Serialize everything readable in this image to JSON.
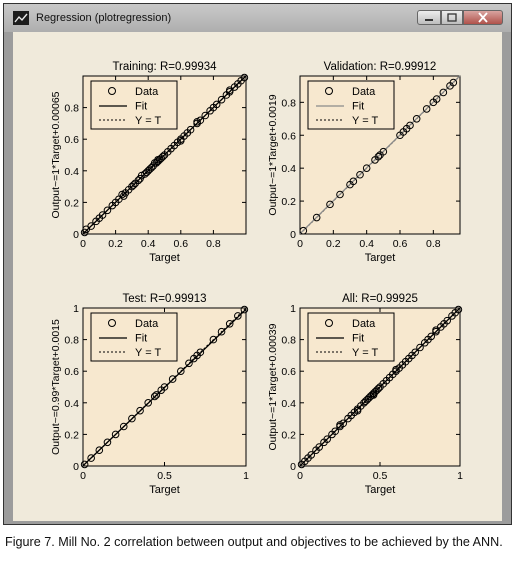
{
  "window": {
    "title": "Regression (plotregression)",
    "icons": {
      "app": "plot-icon",
      "minimize": "minimize-icon",
      "maximize": "maximize-icon",
      "close": "close-icon"
    },
    "colors": {
      "client_bg": "#f0eadb",
      "axes_bg": "#f7e8cf",
      "frame": "#9c9c9c"
    }
  },
  "caption": "Figure 7. Mill No. 2 correlation between output and objectives to be achieved by the ANN.",
  "chart_data": [
    {
      "type": "scatter",
      "title": "Training: R=0.99934",
      "xlabel": "Target",
      "ylabel": "Output~=1*Target+0.00065",
      "xlim": [
        0,
        1
      ],
      "ylim": [
        0,
        1
      ],
      "xticks": [
        "0",
        "0.2",
        "0.4",
        "0.6",
        "0.8"
      ],
      "xtick_values": [
        0,
        0.2,
        0.4,
        0.6,
        0.8
      ],
      "yticks": [
        "0",
        "0.2",
        "0.4",
        "0.6",
        "0.8"
      ],
      "ytick_values": [
        0,
        0.2,
        0.4,
        0.6,
        0.8
      ],
      "legend": [
        "Data",
        "Fit",
        "Y = T"
      ],
      "legend_position": "top-left",
      "fit_color": "#000000",
      "fit": {
        "slope": 1,
        "intercept": 0.00065
      },
      "points": [
        [
          0.01,
          0.01
        ],
        [
          0.02,
          0.03
        ],
        [
          0.05,
          0.05
        ],
        [
          0.08,
          0.08
        ],
        [
          0.1,
          0.1
        ],
        [
          0.12,
          0.12
        ],
        [
          0.15,
          0.15
        ],
        [
          0.18,
          0.18
        ],
        [
          0.2,
          0.2
        ],
        [
          0.22,
          0.22
        ],
        [
          0.24,
          0.25
        ],
        [
          0.26,
          0.26
        ],
        [
          0.28,
          0.28
        ],
        [
          0.3,
          0.3
        ],
        [
          0.31,
          0.31
        ],
        [
          0.32,
          0.32
        ],
        [
          0.34,
          0.34
        ],
        [
          0.35,
          0.35
        ],
        [
          0.36,
          0.37
        ],
        [
          0.38,
          0.38
        ],
        [
          0.39,
          0.39
        ],
        [
          0.4,
          0.4
        ],
        [
          0.41,
          0.41
        ],
        [
          0.42,
          0.42
        ],
        [
          0.43,
          0.43
        ],
        [
          0.44,
          0.45
        ],
        [
          0.45,
          0.45
        ],
        [
          0.46,
          0.46
        ],
        [
          0.47,
          0.47
        ],
        [
          0.48,
          0.48
        ],
        [
          0.49,
          0.49
        ],
        [
          0.5,
          0.5
        ],
        [
          0.52,
          0.52
        ],
        [
          0.54,
          0.54
        ],
        [
          0.56,
          0.56
        ],
        [
          0.58,
          0.58
        ],
        [
          0.6,
          0.6
        ],
        [
          0.62,
          0.62
        ],
        [
          0.64,
          0.64
        ],
        [
          0.66,
          0.66
        ],
        [
          0.7,
          0.7
        ],
        [
          0.72,
          0.72
        ],
        [
          0.75,
          0.75
        ],
        [
          0.78,
          0.78
        ],
        [
          0.8,
          0.8
        ],
        [
          0.82,
          0.82
        ],
        [
          0.85,
          0.85
        ],
        [
          0.88,
          0.88
        ],
        [
          0.9,
          0.9
        ],
        [
          0.93,
          0.93
        ],
        [
          0.95,
          0.95
        ],
        [
          0.97,
          0.97
        ],
        [
          0.99,
          0.99
        ],
        [
          0.9,
          0.91
        ],
        [
          0.6,
          0.59
        ],
        [
          0.25,
          0.24
        ],
        [
          0.46,
          0.47
        ],
        [
          0.7,
          0.71
        ]
      ]
    },
    {
      "type": "scatter",
      "title": "Validation: R=0.99912",
      "xlabel": "Target",
      "ylabel": "Output~=1*Target+0.0019",
      "xlim": [
        0,
        0.96
      ],
      "ylim": [
        0,
        0.96
      ],
      "xticks": [
        "0",
        "0.2",
        "0.4",
        "0.6",
        "0.8"
      ],
      "xtick_values": [
        0,
        0.2,
        0.4,
        0.6,
        0.8
      ],
      "yticks": [
        "0",
        "0.2",
        "0.4",
        "0.6",
        "0.8"
      ],
      "ytick_values": [
        0,
        0.2,
        0.4,
        0.6,
        0.8
      ],
      "legend": [
        "Data",
        "Fit",
        "Y = T"
      ],
      "legend_position": "top-left",
      "fit_color": "#8a8a8a",
      "fit": {
        "slope": 1,
        "intercept": 0.0019
      },
      "points": [
        [
          0.02,
          0.02
        ],
        [
          0.1,
          0.1
        ],
        [
          0.18,
          0.18
        ],
        [
          0.24,
          0.24
        ],
        [
          0.3,
          0.3
        ],
        [
          0.32,
          0.32
        ],
        [
          0.36,
          0.36
        ],
        [
          0.4,
          0.4
        ],
        [
          0.45,
          0.45
        ],
        [
          0.47,
          0.47
        ],
        [
          0.48,
          0.48
        ],
        [
          0.5,
          0.5
        ],
        [
          0.6,
          0.6
        ],
        [
          0.62,
          0.62
        ],
        [
          0.64,
          0.64
        ],
        [
          0.66,
          0.66
        ],
        [
          0.7,
          0.7
        ],
        [
          0.76,
          0.76
        ],
        [
          0.8,
          0.8
        ],
        [
          0.82,
          0.82
        ],
        [
          0.86,
          0.86
        ],
        [
          0.9,
          0.9
        ],
        [
          0.92,
          0.92
        ]
      ]
    },
    {
      "type": "scatter",
      "title": "Test: R=0.99913",
      "xlabel": "Target",
      "ylabel": "Output~=0.99*Target+0.0015",
      "xlim": [
        0,
        1
      ],
      "ylim": [
        0,
        1
      ],
      "xticks": [
        "0",
        "0.5",
        "1"
      ],
      "xtick_values": [
        0,
        0.5,
        1
      ],
      "yticks": [
        "0",
        "0.2",
        "0.4",
        "0.6",
        "0.8",
        "1"
      ],
      "ytick_values": [
        0,
        0.2,
        0.4,
        0.6,
        0.8,
        1
      ],
      "legend": [
        "Data",
        "Fit",
        "Y = T"
      ],
      "legend_position": "top-left",
      "fit_color": "#000000",
      "fit": {
        "slope": 0.99,
        "intercept": 0.0015
      },
      "points": [
        [
          0.01,
          0.01
        ],
        [
          0.05,
          0.05
        ],
        [
          0.1,
          0.1
        ],
        [
          0.15,
          0.15
        ],
        [
          0.2,
          0.2
        ],
        [
          0.25,
          0.25
        ],
        [
          0.3,
          0.3
        ],
        [
          0.35,
          0.35
        ],
        [
          0.4,
          0.4
        ],
        [
          0.44,
          0.44
        ],
        [
          0.45,
          0.45
        ],
        [
          0.48,
          0.48
        ],
        [
          0.5,
          0.5
        ],
        [
          0.55,
          0.55
        ],
        [
          0.6,
          0.6
        ],
        [
          0.65,
          0.65
        ],
        [
          0.68,
          0.68
        ],
        [
          0.7,
          0.7
        ],
        [
          0.72,
          0.72
        ],
        [
          0.8,
          0.8
        ],
        [
          0.85,
          0.85
        ],
        [
          0.9,
          0.9
        ],
        [
          0.95,
          0.95
        ],
        [
          0.99,
          0.99
        ]
      ]
    },
    {
      "type": "scatter",
      "title": "All: R=0.99925",
      "xlabel": "Target",
      "ylabel": "Output~=1*Target+0.00039",
      "xlim": [
        0,
        1
      ],
      "ylim": [
        0,
        1
      ],
      "xticks": [
        "0",
        "0.5",
        "1"
      ],
      "xtick_values": [
        0,
        0.5,
        1
      ],
      "yticks": [
        "0",
        "0.2",
        "0.4",
        "0.6",
        "0.8",
        "1"
      ],
      "ytick_values": [
        0,
        0.2,
        0.4,
        0.6,
        0.8,
        1
      ],
      "legend": [
        "Data",
        "Fit",
        "Y = T"
      ],
      "legend_position": "top-left",
      "fit_color": "#000000",
      "fit": {
        "slope": 1,
        "intercept": 0.00039
      },
      "points": [
        [
          0.01,
          0.01
        ],
        [
          0.03,
          0.03
        ],
        [
          0.05,
          0.05
        ],
        [
          0.07,
          0.07
        ],
        [
          0.1,
          0.1
        ],
        [
          0.12,
          0.12
        ],
        [
          0.15,
          0.15
        ],
        [
          0.17,
          0.17
        ],
        [
          0.2,
          0.2
        ],
        [
          0.22,
          0.22
        ],
        [
          0.25,
          0.25
        ],
        [
          0.27,
          0.27
        ],
        [
          0.3,
          0.3
        ],
        [
          0.32,
          0.32
        ],
        [
          0.34,
          0.34
        ],
        [
          0.36,
          0.36
        ],
        [
          0.38,
          0.38
        ],
        [
          0.4,
          0.4
        ],
        [
          0.41,
          0.41
        ],
        [
          0.42,
          0.42
        ],
        [
          0.43,
          0.43
        ],
        [
          0.44,
          0.44
        ],
        [
          0.45,
          0.45
        ],
        [
          0.46,
          0.46
        ],
        [
          0.47,
          0.47
        ],
        [
          0.48,
          0.48
        ],
        [
          0.49,
          0.49
        ],
        [
          0.5,
          0.5
        ],
        [
          0.52,
          0.52
        ],
        [
          0.54,
          0.54
        ],
        [
          0.56,
          0.56
        ],
        [
          0.58,
          0.58
        ],
        [
          0.6,
          0.6
        ],
        [
          0.62,
          0.62
        ],
        [
          0.64,
          0.64
        ],
        [
          0.66,
          0.66
        ],
        [
          0.68,
          0.68
        ],
        [
          0.7,
          0.7
        ],
        [
          0.72,
          0.72
        ],
        [
          0.75,
          0.75
        ],
        [
          0.78,
          0.78
        ],
        [
          0.8,
          0.8
        ],
        [
          0.82,
          0.82
        ],
        [
          0.85,
          0.85
        ],
        [
          0.88,
          0.88
        ],
        [
          0.9,
          0.9
        ],
        [
          0.92,
          0.92
        ],
        [
          0.95,
          0.95
        ],
        [
          0.97,
          0.97
        ],
        [
          0.99,
          0.99
        ],
        [
          0.36,
          0.35
        ],
        [
          0.6,
          0.61
        ],
        [
          0.25,
          0.26
        ],
        [
          0.46,
          0.45
        ],
        [
          0.85,
          0.86
        ]
      ]
    }
  ]
}
